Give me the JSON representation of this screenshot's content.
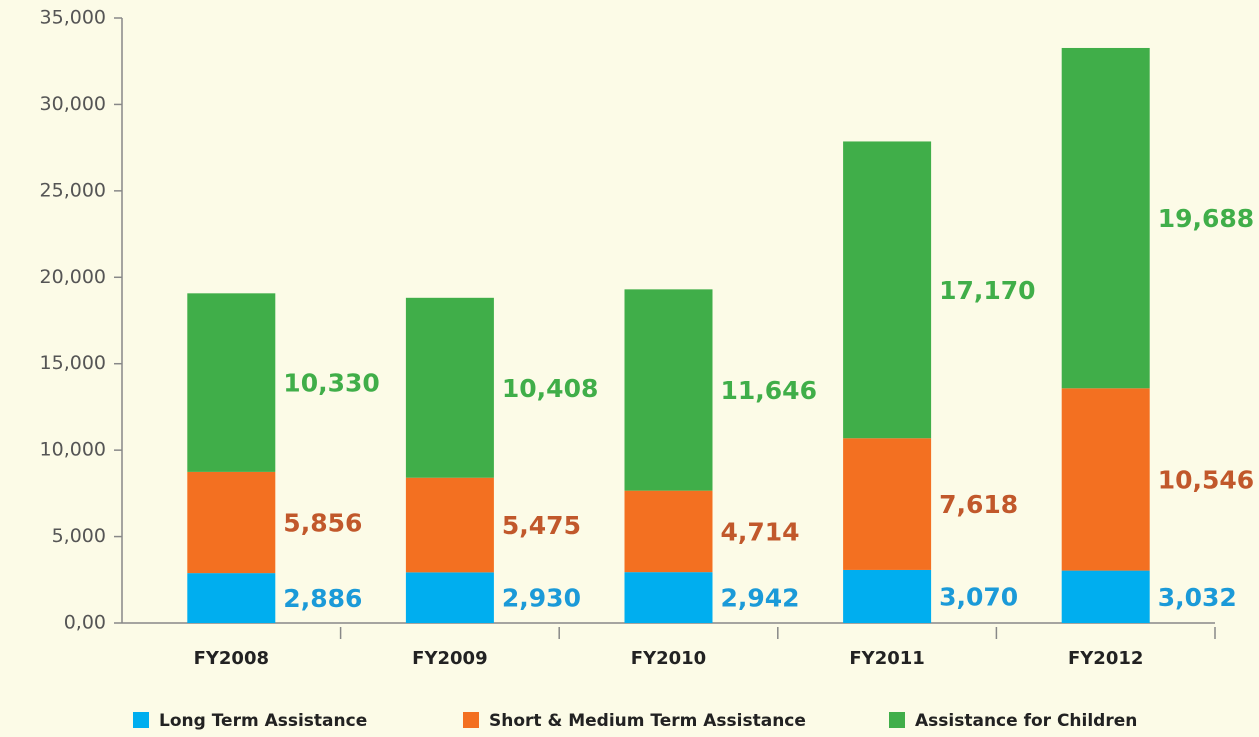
{
  "chart_data": {
    "type": "stacked_bar",
    "categories": [
      "FY2008",
      "FY2009",
      "FY2010",
      "FY2011",
      "FY2012"
    ],
    "series": [
      {
        "name": "Long Term Assistance",
        "color": "#00aeef",
        "label_color": "#1b9ad8",
        "values": [
          2886,
          2930,
          2942,
          3070,
          3032
        ],
        "value_labels": [
          "2,886",
          "2,930",
          "2,942",
          "3,070",
          "3,032"
        ]
      },
      {
        "name": "Short & Medium Term Assistance",
        "color": "#f37021",
        "label_color": "#c1582b",
        "values": [
          5856,
          5475,
          4714,
          7618,
          10546
        ],
        "value_labels": [
          "5,856",
          "5,475",
          "4,714",
          "7,618",
          "10,546"
        ]
      },
      {
        "name": "Assistance for Children",
        "color": "#40ae49",
        "label_color": "#40ae49",
        "values": [
          10330,
          10408,
          11646,
          17170,
          19688
        ],
        "value_labels": [
          "10,330",
          "10,408",
          "11,646",
          "17,170",
          "19,688"
        ]
      }
    ],
    "ylim": [
      0,
      35000
    ],
    "yticks": [
      {
        "value": 0,
        "label": "0,00"
      },
      {
        "value": 5000,
        "label": "5,000"
      },
      {
        "value": 10000,
        "label": "10,000"
      },
      {
        "value": 15000,
        "label": "15,000"
      },
      {
        "value": 20000,
        "label": "20,000"
      },
      {
        "value": 25000,
        "label": "25,000"
      },
      {
        "value": 30000,
        "label": "30,000"
      },
      {
        "value": 35000,
        "label": "35,000"
      }
    ],
    "grid": false,
    "legend": "bottom"
  }
}
